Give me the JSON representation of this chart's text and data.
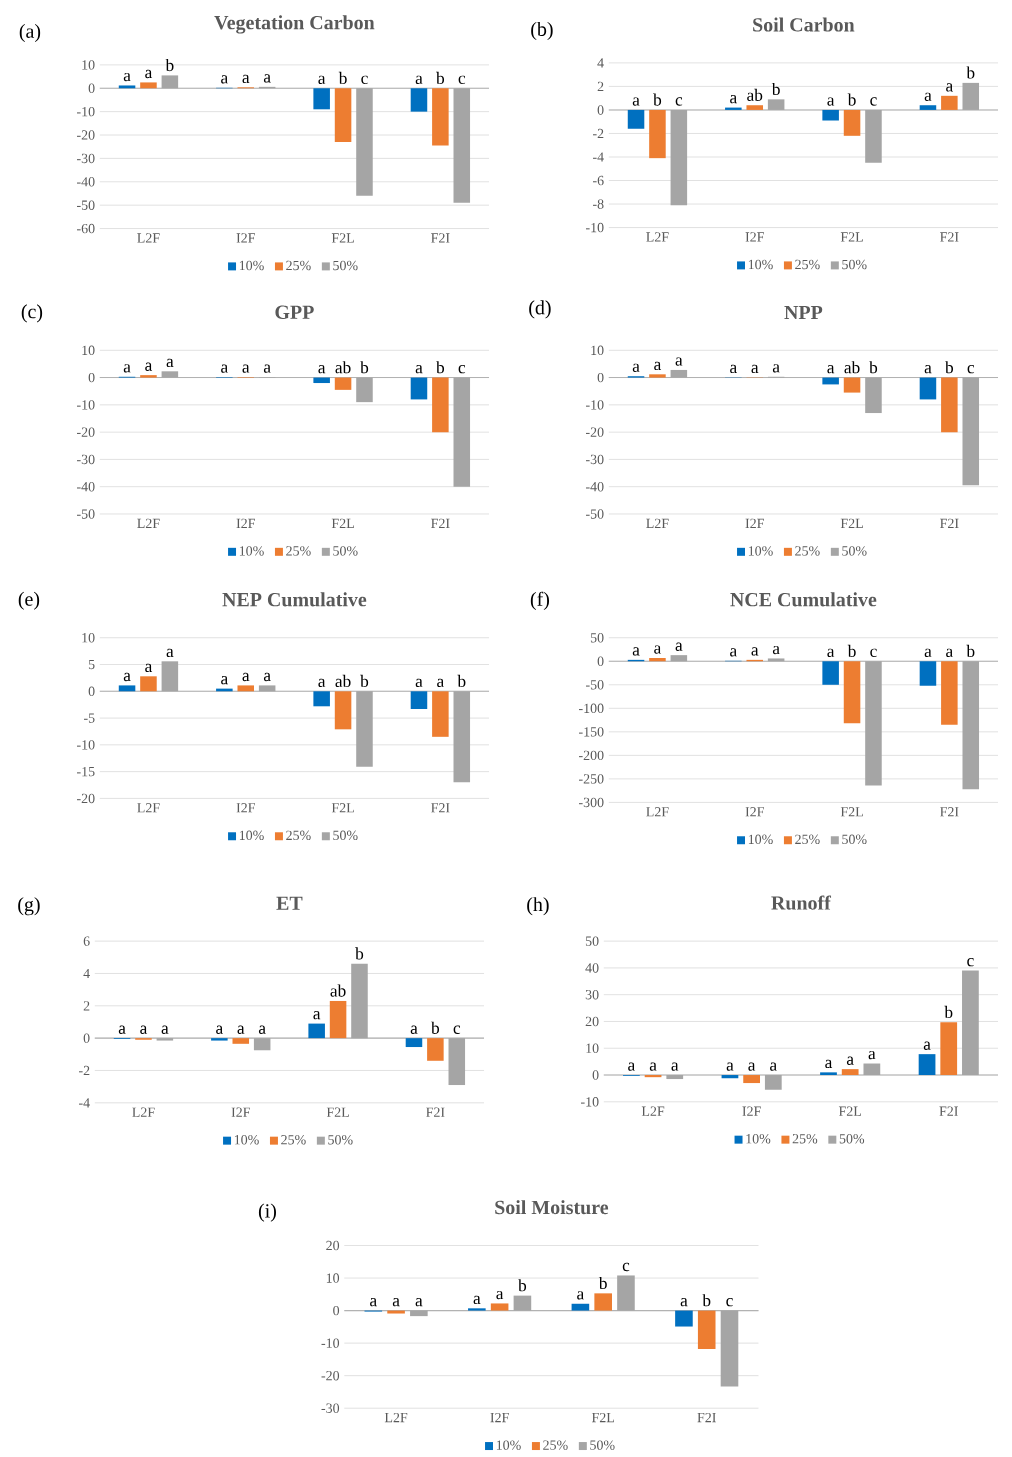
{
  "chart_data": [
    {
      "type": "bar",
      "title": "Vegetation Carbon",
      "annotations": [
        "(a)"
      ],
      "categories": [
        "L2F",
        "I2F",
        "F2L",
        "F2I"
      ],
      "ylim": [
        -60,
        10
      ],
      "yticks": [
        -60,
        -50,
        -40,
        -30,
        -20,
        -10,
        0,
        10
      ],
      "grid": "y",
      "legend": "bottom",
      "series": [
        {
          "name": "10%",
          "color": "#0070c0",
          "values": [
            1.2,
            0.2,
            -9,
            -10
          ],
          "value_labels": [
            "a",
            "a",
            "a",
            "a"
          ]
        },
        {
          "name": "25%",
          "color": "#ed7d31",
          "values": [
            2.5,
            0.4,
            -23,
            -24.5
          ],
          "value_labels": [
            "a",
            "a",
            "b",
            "b"
          ]
        },
        {
          "name": "50%",
          "color": "#a5a5a5",
          "values": [
            5.5,
            0.6,
            -46,
            -49
          ],
          "value_labels": [
            "b",
            "a",
            "c",
            "c"
          ]
        }
      ]
    },
    {
      "type": "bar",
      "title": "Soil Carbon",
      "annotations": [
        "(b)"
      ],
      "categories": [
        "L2F",
        "I2F",
        "F2L",
        "F2I"
      ],
      "ylim": [
        -10,
        4
      ],
      "yticks": [
        -10,
        -8,
        -6,
        -4,
        -2,
        0,
        2,
        4
      ],
      "grid": "y",
      "legend": "bottom",
      "series": [
        {
          "name": "10%",
          "color": "#0070c0",
          "values": [
            -1.6,
            0.2,
            -0.9,
            0.4
          ],
          "value_labels": [
            "a",
            "a",
            "a",
            "a"
          ]
        },
        {
          "name": "25%",
          "color": "#ed7d31",
          "values": [
            -4.1,
            0.4,
            -2.2,
            1.2
          ],
          "value_labels": [
            "b",
            "ab",
            "b",
            "a"
          ]
        },
        {
          "name": "50%",
          "color": "#a5a5a5",
          "values": [
            -8.1,
            0.9,
            -4.5,
            2.3
          ],
          "value_labels": [
            "c",
            "b",
            "c",
            "b"
          ]
        }
      ]
    },
    {
      "type": "bar",
      "title": "GPP",
      "annotations": [
        "(c)"
      ],
      "categories": [
        "L2F",
        "I2F",
        "F2L",
        "F2I"
      ],
      "ylim": [
        -50,
        10
      ],
      "yticks": [
        -50,
        -40,
        -30,
        -20,
        -10,
        0,
        10
      ],
      "grid": "y",
      "legend": "bottom",
      "series": [
        {
          "name": "10%",
          "color": "#0070c0",
          "values": [
            0.3,
            0.2,
            -2,
            -8
          ],
          "value_labels": [
            "a",
            "a",
            "a",
            "a"
          ]
        },
        {
          "name": "25%",
          "color": "#ed7d31",
          "values": [
            0.9,
            0.2,
            -4.5,
            -20
          ],
          "value_labels": [
            "a",
            "a",
            "ab",
            "b"
          ]
        },
        {
          "name": "50%",
          "color": "#a5a5a5",
          "values": [
            2.3,
            0.2,
            -9,
            -40
          ],
          "value_labels": [
            "a",
            "a",
            "b",
            "c"
          ]
        }
      ]
    },
    {
      "type": "bar",
      "title": "NPP",
      "annotations": [
        "(d)"
      ],
      "categories": [
        "L2F",
        "I2F",
        "F2L",
        "F2I"
      ],
      "ylim": [
        -50,
        10
      ],
      "yticks": [
        -50,
        -40,
        -30,
        -20,
        -10,
        0,
        10
      ],
      "grid": "y",
      "legend": "bottom",
      "series": [
        {
          "name": "10%",
          "color": "#0070c0",
          "values": [
            0.5,
            0.1,
            -2.5,
            -8
          ],
          "value_labels": [
            "a",
            "a",
            "a",
            "a"
          ]
        },
        {
          "name": "25%",
          "color": "#ed7d31",
          "values": [
            1.2,
            0.1,
            -5.5,
            -20
          ],
          "value_labels": [
            "a",
            "a",
            "ab",
            "b"
          ]
        },
        {
          "name": "50%",
          "color": "#a5a5a5",
          "values": [
            2.8,
            0.3,
            -13,
            -39.5
          ],
          "value_labels": [
            "a",
            "a",
            "b",
            "c"
          ]
        }
      ]
    },
    {
      "type": "bar",
      "title": "NEP Cumulative",
      "annotations": [
        "(e)"
      ],
      "categories": [
        "L2F",
        "I2F",
        "F2L",
        "F2I"
      ],
      "ylim": [
        -20,
        10
      ],
      "yticks": [
        -20,
        -15,
        -10,
        -5,
        0,
        5,
        10
      ],
      "grid": "y",
      "legend": "bottom",
      "series": [
        {
          "name": "10%",
          "color": "#0070c0",
          "values": [
            1.1,
            0.5,
            -2.8,
            -3.3
          ],
          "value_labels": [
            "a",
            "a",
            "a",
            "a"
          ]
        },
        {
          "name": "25%",
          "color": "#ed7d31",
          "values": [
            2.8,
            1.1,
            -7.1,
            -8.5
          ],
          "value_labels": [
            "a",
            "a",
            "ab",
            "a"
          ]
        },
        {
          "name": "50%",
          "color": "#a5a5a5",
          "values": [
            5.6,
            1.1,
            -14.1,
            -17
          ],
          "value_labels": [
            "a",
            "a",
            "b",
            "b"
          ]
        }
      ]
    },
    {
      "type": "bar",
      "title": "NCE Cumulative",
      "annotations": [
        "(f)"
      ],
      "categories": [
        "L2F",
        "I2F",
        "F2L",
        "F2I"
      ],
      "ylim": [
        -300,
        50
      ],
      "yticks": [
        -300,
        -250,
        -200,
        -150,
        -100,
        -50,
        0,
        50
      ],
      "grid": "y",
      "legend": "bottom",
      "series": [
        {
          "name": "10%",
          "color": "#0070c0",
          "values": [
            3,
            1,
            -50,
            -52
          ],
          "value_labels": [
            "a",
            "a",
            "a",
            "a"
          ]
        },
        {
          "name": "25%",
          "color": "#ed7d31",
          "values": [
            7,
            3,
            -132,
            -135
          ],
          "value_labels": [
            "a",
            "a",
            "b",
            "a"
          ]
        },
        {
          "name": "50%",
          "color": "#a5a5a5",
          "values": [
            13,
            6,
            -264,
            -272
          ],
          "value_labels": [
            "a",
            "a",
            "c",
            "b"
          ]
        }
      ]
    },
    {
      "type": "bar",
      "title": "ET",
      "annotations": [
        "(g)"
      ],
      "categories": [
        "L2F",
        "I2F",
        "F2L",
        "F2I"
      ],
      "ylim": [
        -4,
        6
      ],
      "yticks": [
        -4,
        -2,
        0,
        2,
        4,
        6
      ],
      "grid": "y",
      "legend": "bottom",
      "series": [
        {
          "name": "10%",
          "color": "#0070c0",
          "values": [
            -0.05,
            -0.15,
            0.9,
            -0.55
          ],
          "value_labels": [
            "a",
            "a",
            "a",
            "a"
          ]
        },
        {
          "name": "25%",
          "color": "#ed7d31",
          "values": [
            -0.1,
            -0.35,
            2.3,
            -1.4
          ],
          "value_labels": [
            "a",
            "a",
            "ab",
            "b"
          ]
        },
        {
          "name": "50%",
          "color": "#a5a5a5",
          "values": [
            -0.15,
            -0.75,
            4.6,
            -2.9
          ],
          "value_labels": [
            "a",
            "a",
            "b",
            "c"
          ]
        }
      ]
    },
    {
      "type": "bar",
      "title": "Runoff",
      "annotations": [
        "(h)"
      ],
      "categories": [
        "L2F",
        "I2F",
        "F2L",
        "F2I"
      ],
      "ylim": [
        -10,
        50
      ],
      "yticks": [
        -10,
        0,
        10,
        20,
        30,
        40,
        50
      ],
      "grid": "y",
      "legend": "bottom",
      "series": [
        {
          "name": "10%",
          "color": "#0070c0",
          "values": [
            -0.3,
            -1.2,
            1,
            7.8
          ],
          "value_labels": [
            "a",
            "a",
            "a",
            "a"
          ]
        },
        {
          "name": "25%",
          "color": "#ed7d31",
          "values": [
            -0.8,
            -3,
            2.2,
            19.7
          ],
          "value_labels": [
            "a",
            "a",
            "a",
            "b"
          ]
        },
        {
          "name": "50%",
          "color": "#a5a5a5",
          "values": [
            -1.5,
            -5.5,
            4.3,
            39
          ],
          "value_labels": [
            "a",
            "a",
            "a",
            "c"
          ]
        }
      ]
    },
    {
      "type": "bar",
      "title": "Soil Moisture",
      "annotations": [
        "(i)"
      ],
      "categories": [
        "L2F",
        "I2F",
        "F2L",
        "F2I"
      ],
      "ylim": [
        -30,
        20
      ],
      "yticks": [
        -30,
        -20,
        -10,
        0,
        10,
        20
      ],
      "grid": "y",
      "legend": "bottom",
      "series": [
        {
          "name": "10%",
          "color": "#0070c0",
          "values": [
            -0.3,
            0.7,
            2.1,
            -4.9
          ],
          "value_labels": [
            "a",
            "a",
            "a",
            "a"
          ]
        },
        {
          "name": "25%",
          "color": "#ed7d31",
          "values": [
            -0.9,
            2.2,
            5.3,
            -11.8
          ],
          "value_labels": [
            "a",
            "a",
            "b",
            "b"
          ]
        },
        {
          "name": "50%",
          "color": "#a5a5a5",
          "values": [
            -1.7,
            4.6,
            10.8,
            -23.3
          ],
          "value_labels": [
            "a",
            "b",
            "c",
            "c"
          ]
        }
      ]
    }
  ]
}
